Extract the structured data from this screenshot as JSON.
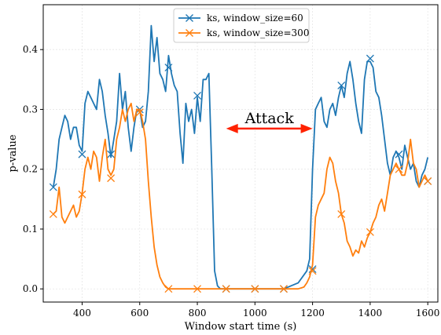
{
  "chart_data": {
    "type": "line",
    "xlabel": "Window start time (s)",
    "ylabel": "p-value",
    "xlim": [
      265,
      1635
    ],
    "ylim": [
      -0.022,
      0.475
    ],
    "xticks": [
      400,
      600,
      800,
      1000,
      1200,
      1400,
      1600
    ],
    "yticks": [
      0.0,
      0.1,
      0.2,
      0.3,
      0.4
    ],
    "ytick_labels": [
      "0.0",
      "0.1",
      "0.2",
      "0.3",
      "0.4"
    ],
    "grid": true,
    "legend_position": "top-center",
    "annotation": {
      "text": "Attack",
      "arrow_from": 900,
      "arrow_to": 1200,
      "arrow_y": 0.268,
      "color": "#ff2200"
    },
    "series": [
      {
        "name": "ks, window_size=60",
        "color": "#1f77b4",
        "marker": "x",
        "x": [
          300,
          310,
          320,
          330,
          340,
          350,
          360,
          370,
          380,
          390,
          400,
          410,
          420,
          430,
          440,
          450,
          460,
          470,
          480,
          490,
          500,
          510,
          520,
          530,
          540,
          550,
          560,
          570,
          580,
          590,
          600,
          610,
          620,
          630,
          640,
          650,
          660,
          670,
          680,
          690,
          700,
          710,
          720,
          730,
          740,
          750,
          760,
          770,
          780,
          790,
          800,
          810,
          820,
          830,
          840,
          850,
          860,
          870,
          880,
          890,
          900,
          950,
          1000,
          1050,
          1100,
          1150,
          1180,
          1190,
          1200,
          1210,
          1220,
          1230,
          1240,
          1250,
          1260,
          1270,
          1280,
          1290,
          1300,
          1310,
          1320,
          1330,
          1340,
          1350,
          1360,
          1370,
          1380,
          1390,
          1400,
          1410,
          1420,
          1430,
          1440,
          1450,
          1460,
          1470,
          1480,
          1490,
          1500,
          1510,
          1520,
          1530,
          1540,
          1550,
          1560,
          1570,
          1580,
          1590,
          1600
        ],
        "y": [
          0.17,
          0.2,
          0.25,
          0.27,
          0.29,
          0.28,
          0.25,
          0.27,
          0.27,
          0.24,
          0.23,
          0.31,
          0.33,
          0.32,
          0.31,
          0.3,
          0.35,
          0.33,
          0.29,
          0.26,
          0.22,
          0.25,
          0.28,
          0.36,
          0.3,
          0.33,
          0.27,
          0.23,
          0.27,
          0.3,
          0.3,
          0.27,
          0.28,
          0.33,
          0.44,
          0.38,
          0.42,
          0.36,
          0.35,
          0.33,
          0.39,
          0.36,
          0.34,
          0.33,
          0.26,
          0.21,
          0.31,
          0.28,
          0.3,
          0.26,
          0.32,
          0.28,
          0.35,
          0.35,
          0.36,
          0.2,
          0.03,
          0.005,
          0.0,
          0.0,
          0.0,
          0.0,
          0.0,
          0.0,
          0.0,
          0.01,
          0.03,
          0.05,
          0.2,
          0.3,
          0.31,
          0.32,
          0.28,
          0.27,
          0.3,
          0.31,
          0.29,
          0.32,
          0.34,
          0.32,
          0.36,
          0.38,
          0.35,
          0.31,
          0.28,
          0.26,
          0.35,
          0.38,
          0.38,
          0.37,
          0.33,
          0.32,
          0.29,
          0.25,
          0.21,
          0.19,
          0.22,
          0.23,
          0.22,
          0.2,
          0.24,
          0.22,
          0.2,
          0.21,
          0.18,
          0.17,
          0.19,
          0.2,
          0.22
        ],
        "markers_x": [
          300,
          400,
          500,
          600,
          700,
          800,
          900,
          1000,
          1100,
          1200,
          1300,
          1400,
          1500,
          1600
        ],
        "markers_y": [
          0.17,
          0.225,
          0.225,
          0.3,
          0.37,
          0.323,
          0.0,
          0.0,
          0.0,
          0.033,
          0.34,
          0.385,
          0.225,
          0.18
        ]
      },
      {
        "name": "ks, window_size=300",
        "color": "#ff7f0e",
        "marker": "x",
        "x": [
          300,
          310,
          320,
          330,
          340,
          350,
          360,
          370,
          380,
          390,
          400,
          410,
          420,
          430,
          440,
          450,
          460,
          470,
          480,
          490,
          500,
          510,
          520,
          530,
          540,
          550,
          560,
          570,
          580,
          590,
          600,
          610,
          620,
          630,
          640,
          650,
          660,
          670,
          680,
          690,
          700,
          750,
          800,
          900,
          1000,
          1100,
          1150,
          1170,
          1180,
          1190,
          1200,
          1210,
          1220,
          1230,
          1240,
          1250,
          1260,
          1270,
          1280,
          1290,
          1300,
          1310,
          1320,
          1330,
          1340,
          1350,
          1360,
          1370,
          1380,
          1390,
          1400,
          1410,
          1420,
          1430,
          1440,
          1450,
          1460,
          1470,
          1480,
          1490,
          1500,
          1510,
          1520,
          1530,
          1540,
          1550,
          1560,
          1570,
          1580,
          1590,
          1600
        ],
        "y": [
          0.125,
          0.13,
          0.17,
          0.12,
          0.11,
          0.12,
          0.13,
          0.14,
          0.12,
          0.13,
          0.16,
          0.2,
          0.22,
          0.2,
          0.23,
          0.22,
          0.18,
          0.22,
          0.25,
          0.2,
          0.19,
          0.2,
          0.25,
          0.27,
          0.3,
          0.28,
          0.3,
          0.31,
          0.28,
          0.3,
          0.3,
          0.28,
          0.25,
          0.18,
          0.12,
          0.07,
          0.04,
          0.02,
          0.01,
          0.003,
          0.0,
          0.0,
          0.0,
          0.0,
          0.0,
          0.0,
          0.0,
          0.003,
          0.01,
          0.02,
          0.04,
          0.12,
          0.14,
          0.15,
          0.16,
          0.2,
          0.22,
          0.21,
          0.18,
          0.16,
          0.125,
          0.11,
          0.08,
          0.07,
          0.055,
          0.065,
          0.06,
          0.08,
          0.07,
          0.085,
          0.095,
          0.11,
          0.12,
          0.14,
          0.15,
          0.13,
          0.16,
          0.19,
          0.2,
          0.21,
          0.2,
          0.19,
          0.19,
          0.21,
          0.25,
          0.21,
          0.2,
          0.17,
          0.18,
          0.19,
          0.18
        ],
        "markers_x": [
          300,
          400,
          500,
          600,
          700,
          800,
          900,
          1000,
          1100,
          1200,
          1300,
          1400,
          1500,
          1600
        ],
        "markers_y": [
          0.125,
          0.158,
          0.185,
          0.295,
          0.0,
          0.0,
          0.0,
          0.0,
          0.0,
          0.03,
          0.125,
          0.095,
          0.2,
          0.18
        ]
      }
    ]
  }
}
